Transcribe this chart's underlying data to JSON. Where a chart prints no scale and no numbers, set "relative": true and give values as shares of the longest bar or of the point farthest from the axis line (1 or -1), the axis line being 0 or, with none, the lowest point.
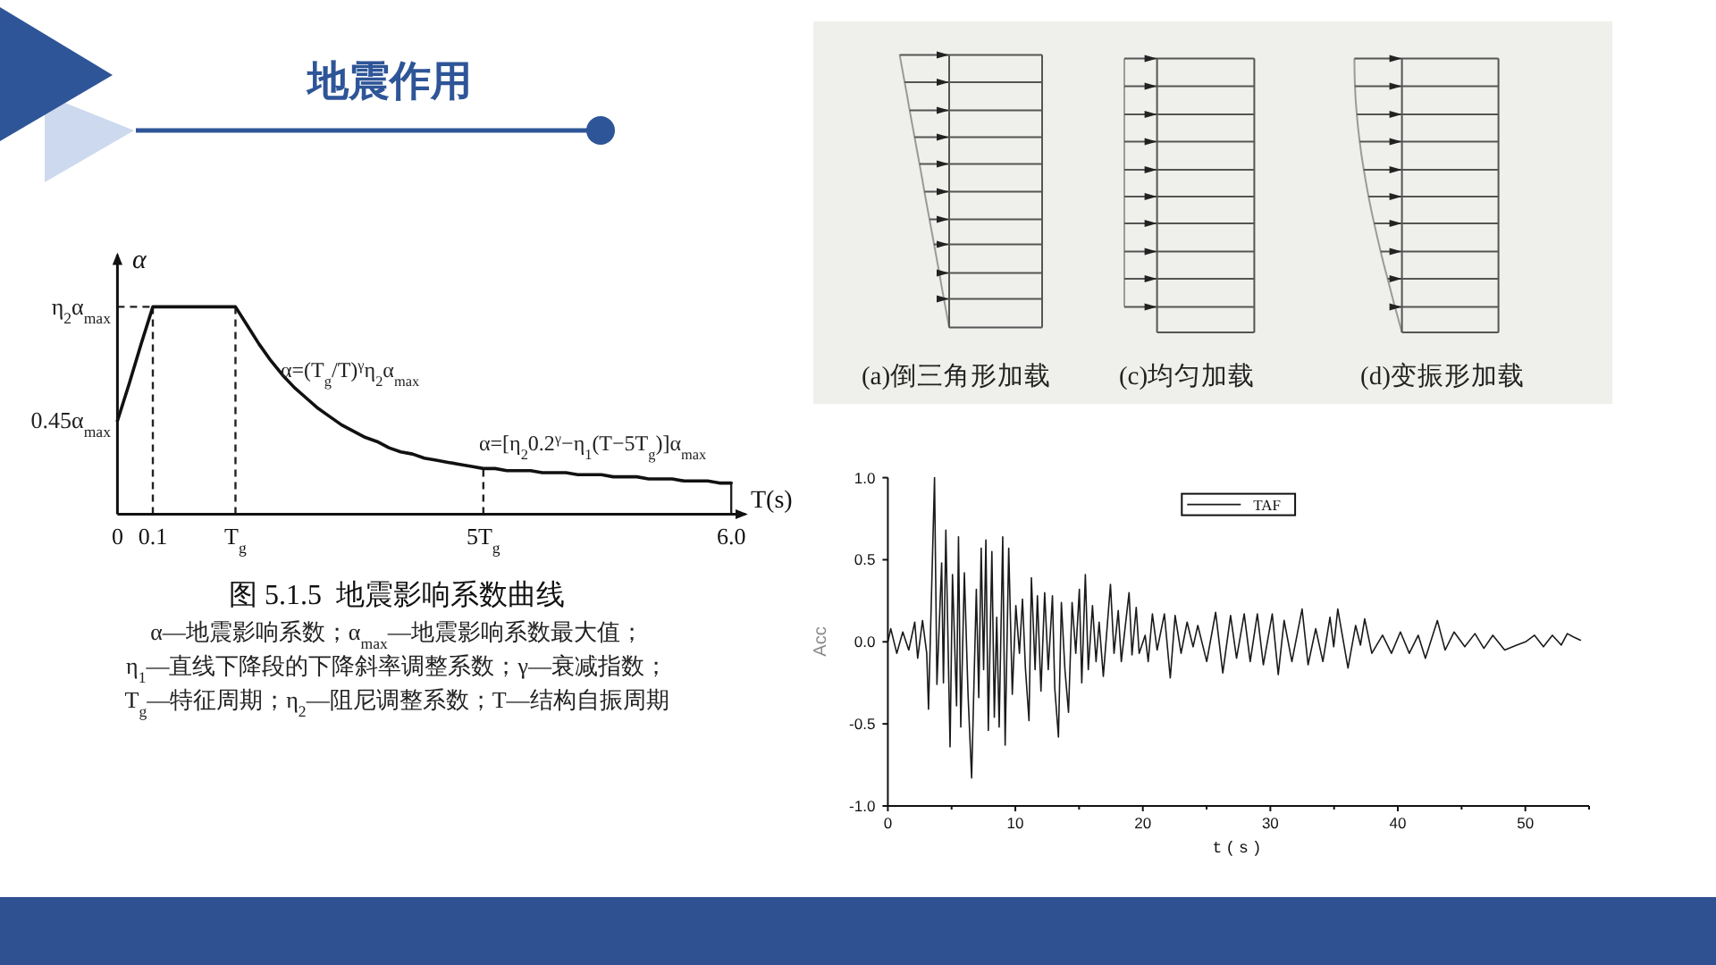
{
  "chart_data": [
    {
      "type": "other",
      "title": "地震作用"
    },
    {
      "type": "line",
      "title": "图 5.1.5  地震影响系数曲线",
      "xlabel": "T(s)",
      "ylabel": "α",
      "relative": true,
      "categories": [
        "0",
        null,
        null,
        "0.1",
        null,
        null,
        null,
        null,
        null,
        null,
        "T$_{g}$",
        null,
        null,
        null,
        null,
        null,
        null,
        null,
        null,
        null,
        null,
        null,
        null,
        null,
        null,
        null,
        null,
        null,
        null,
        null,
        null,
        "5T$_{g}$",
        null,
        null,
        null,
        null,
        null,
        null,
        null,
        null,
        null,
        null,
        null,
        null,
        null,
        null,
        null,
        null,
        null,
        null,
        null,
        null,
        "6.0"
      ],
      "values": [
        0.45,
        0.63,
        0.82,
        1,
        1,
        1,
        1,
        1,
        1,
        1,
        1,
        0.91,
        0.82,
        0.74,
        0.67,
        0.61,
        0.56,
        0.51,
        0.47,
        0.43,
        0.4,
        0.37,
        0.35,
        0.32,
        0.3,
        0.29,
        0.27,
        0.26,
        0.25,
        0.24,
        0.23,
        0.22,
        0.22,
        0.21,
        0.21,
        0.21,
        0.2,
        0.2,
        0.2,
        0.19,
        0.19,
        0.19,
        0.18,
        0.18,
        0.18,
        0.17,
        0.17,
        0.17,
        0.16,
        0.16,
        0.16,
        0.15,
        0.15
      ],
      "color": "#111111",
      "ref_lines": [
        {
          "axis": "x",
          "value": "0.1",
          "line_style": "dashed"
        },
        {
          "axis": "x",
          "value": "T$_{g}$",
          "line_style": "dashed"
        },
        {
          "axis": "x",
          "value": "5T$_{g}$",
          "line_style": "dashed"
        },
        {
          "axis": "x",
          "value": "6.0",
          "line_style": "solid"
        },
        {
          "axis": "y",
          "value": 1,
          "line_style": "dashed"
        }
      ],
      "annotations": [
        "η$_{2}$α$_{max}$",
        "0.45α$_{max}$",
        "α=(T$_{g}$/T)$^{γ}$η$_{2}$α$_{max}$",
        "α=[η$_{2}$0.2$^{γ}$−η$_{1}$(T−5T$_{g}$)]α$_{max}$",
        "α—地震影响系数；α$_{max}$—地震影响系数最大值；",
        "η$_{1}$—直线下降段的下降斜率调整系数；γ—衰减指数；",
        "T$_{g}$—特征周期；η$_{2}$—阻尼调整系数；T—结构自振周期"
      ]
    },
    {
      "type": "other",
      "annotations": [
        "(a)倒三角形加载",
        "(c)均匀加载",
        "(d)变振形加载"
      ]
    },
    {
      "type": "line",
      "xlabel": "t(s)",
      "ylabel": "Acc",
      "x": [
        0,
        0.23,
        0.7,
        1.17,
        1.64,
        2.11,
        2.34,
        2.72,
        3.05,
        3.19,
        3.66,
        3.85,
        4.22,
        4.36,
        4.55,
        4.88,
        5.07,
        5.39,
        5.54,
        5.72,
        6.0,
        6.29,
        6.57,
        6.94,
        7.13,
        7.32,
        7.51,
        7.69,
        7.88,
        8.16,
        8.35,
        8.54,
        8.73,
        9.01,
        9.2,
        9.48,
        9.76,
        10.04,
        10.32,
        10.56,
        10.79,
        11.07,
        11.26,
        11.55,
        11.73,
        12.01,
        12.3,
        12.58,
        12.91,
        13.09,
        13.38,
        13.61,
        13.89,
        14.17,
        14.45,
        14.74,
        15.02,
        15.21,
        15.49,
        15.72,
        16.05,
        16.33,
        16.57,
        16.9,
        17.46,
        17.74,
        18.07,
        18.31,
        18.92,
        19.15,
        19.48,
        19.71,
        20.18,
        20.42,
        20.75,
        21.12,
        21.69,
        22.15,
        22.53,
        23.0,
        23.47,
        23.94,
        24.31,
        25.01,
        25.71,
        26.27,
        26.88,
        27.35,
        27.95,
        28.42,
        28.98,
        29.45,
        30.15,
        30.62,
        31.08,
        31.69,
        32.49,
        32.96,
        33.56,
        34.12,
        34.68,
        34.97,
        35.29,
        36.09,
        36.69,
        37.07,
        37.4,
        37.96,
        38.8,
        39.5,
        40.2,
        40.9,
        41.6,
        42.16,
        43.1,
        43.71,
        44.41,
        45.25,
        46.05,
        46.75,
        47.45,
        48.38,
        49.32,
        50.02,
        50.72,
        51.42,
        52.12,
        52.82,
        53.29,
        53.76,
        54.32
      ],
      "series": [
        {
          "name": "TAF",
          "color": "#1a1a1a",
          "values": [
            0,
            0.08,
            -0.07,
            0.06,
            -0.05,
            0.12,
            -0.1,
            0.13,
            -0.07,
            -0.41,
            1.0,
            -0.26,
            0.48,
            -0.25,
            0.68,
            -0.64,
            0.41,
            -0.39,
            0.64,
            -0.52,
            0.42,
            -0.32,
            -0.83,
            0.32,
            -0.34,
            0.57,
            -0.17,
            0.62,
            -0.54,
            0.55,
            -0.46,
            0.15,
            -0.52,
            0.64,
            -0.63,
            0.57,
            -0.32,
            0.22,
            -0.07,
            0.26,
            -0.16,
            -0.48,
            0.39,
            -0.17,
            0.28,
            -0.3,
            0.3,
            -0.17,
            0.28,
            -0.28,
            -0.58,
            0.24,
            -0.17,
            -0.43,
            0.24,
            -0.07,
            0.32,
            -0.25,
            0.41,
            -0.17,
            0.22,
            -0.12,
            0.12,
            -0.21,
            0.35,
            -0.07,
            0.19,
            -0.12,
            0.3,
            -0.08,
            0.21,
            -0.07,
            0.04,
            -0.12,
            0.17,
            -0.05,
            0.17,
            -0.22,
            0.16,
            -0.07,
            0.12,
            -0.03,
            0.1,
            -0.12,
            0.18,
            -0.19,
            0.16,
            -0.1,
            0.17,
            -0.12,
            0.17,
            -0.14,
            0.17,
            -0.2,
            0.13,
            -0.12,
            0.2,
            -0.14,
            0.08,
            -0.12,
            0.15,
            -0.03,
            0.2,
            -0.16,
            0.1,
            -0.02,
            0.14,
            -0.07,
            0.04,
            -0.07,
            0.06,
            -0.07,
            0.04,
            -0.1,
            0.13,
            -0.05,
            0.06,
            -0.03,
            0.05,
            -0.04,
            0.04,
            -0.05,
            -0.02,
            0,
            0.04,
            -0.03,
            0.04,
            -0.02,
            0.05,
            0.03,
            0.01
          ]
        }
      ],
      "xlim": [
        0,
        55
      ],
      "xticks": [
        0,
        {
          "value": 5,
          "label": null
        },
        10,
        {
          "value": 15,
          "label": null
        },
        20,
        {
          "value": 25,
          "label": null
        },
        30,
        {
          "value": 35,
          "label": null
        },
        40,
        {
          "value": 45,
          "label": null
        },
        50,
        {
          "value": 55,
          "label": null
        }
      ],
      "ylim": [
        -1,
        1
      ],
      "yticks": [
        {
          "value": -1,
          "label": "-1.0"
        },
        -0.5,
        {
          "value": 0,
          "label": "0.0"
        },
        0.5,
        {
          "value": 1,
          "label": "1.0"
        }
      ],
      "legend": "top"
    }
  ]
}
